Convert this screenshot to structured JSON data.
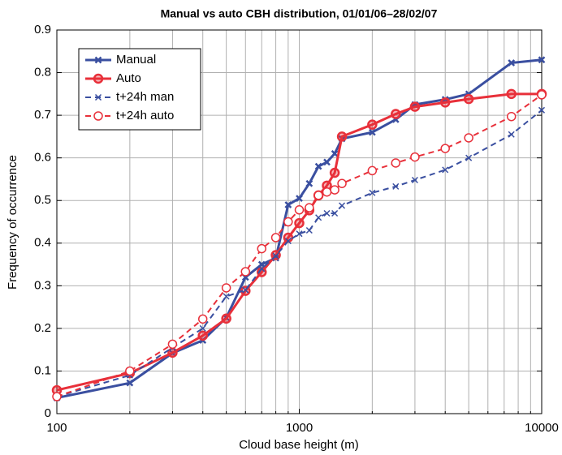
{
  "chart_data": {
    "type": "line",
    "title": "Manual vs auto CBH distribution, 01/01/06–28/02/07",
    "xlabel": "Cloud base height (m)",
    "ylabel": "Frequency of occurrence",
    "x": [
      100,
      200,
      300,
      400,
      500,
      600,
      700,
      800,
      900,
      1000,
      1100,
      1200,
      1300,
      1400,
      1500,
      2000,
      2500,
      3000,
      4000,
      5000,
      7500,
      10000
    ],
    "series": [
      {
        "name": "Manual",
        "color": "#3a4fa0",
        "marker": "x",
        "dashed": false,
        "values": [
          0.037,
          0.072,
          0.142,
          0.172,
          0.225,
          0.32,
          0.35,
          0.365,
          0.49,
          0.505,
          0.54,
          0.58,
          0.59,
          0.61,
          0.645,
          0.66,
          0.69,
          0.725,
          0.737,
          0.75,
          0.823,
          0.83
        ]
      },
      {
        "name": "Auto",
        "color": "#e8303a",
        "marker": "o",
        "dashed": false,
        "values": [
          0.055,
          0.095,
          0.143,
          0.183,
          0.223,
          0.288,
          0.332,
          0.372,
          0.413,
          0.447,
          0.477,
          0.512,
          0.535,
          0.565,
          0.65,
          0.678,
          0.703,
          0.72,
          0.73,
          0.738,
          0.75,
          0.75
        ]
      },
      {
        "name": "t+24h man",
        "color": "#3a4fa0",
        "marker": "x",
        "dashed": true,
        "values": [
          0.04,
          0.09,
          0.155,
          0.2,
          0.275,
          0.29,
          0.34,
          0.37,
          0.405,
          0.422,
          0.43,
          0.46,
          0.47,
          0.47,
          0.488,
          0.518,
          0.533,
          0.548,
          0.572,
          0.6,
          0.655,
          0.712
        ]
      },
      {
        "name": "t+24h auto",
        "color": "#e8303a",
        "marker": "o",
        "dashed": true,
        "values": [
          0.04,
          0.1,
          0.163,
          0.222,
          0.295,
          0.333,
          0.387,
          0.413,
          0.45,
          0.478,
          0.483,
          0.512,
          0.52,
          0.525,
          0.54,
          0.57,
          0.588,
          0.602,
          0.622,
          0.647,
          0.697,
          0.748
        ]
      }
    ],
    "xlog": true,
    "xlim": [
      100,
      10000
    ],
    "xticks": [
      100,
      1000,
      10000
    ],
    "xminor": [
      200,
      300,
      400,
      500,
      600,
      700,
      800,
      900,
      2000,
      3000,
      4000,
      5000,
      6000,
      7000,
      8000,
      9000
    ],
    "ylim": [
      0,
      0.9
    ],
    "yticks": [
      0,
      0.1,
      0.2,
      0.3,
      0.4,
      0.5,
      0.6,
      0.7,
      0.8,
      0.9
    ],
    "grid": true,
    "legend": "upper left"
  }
}
